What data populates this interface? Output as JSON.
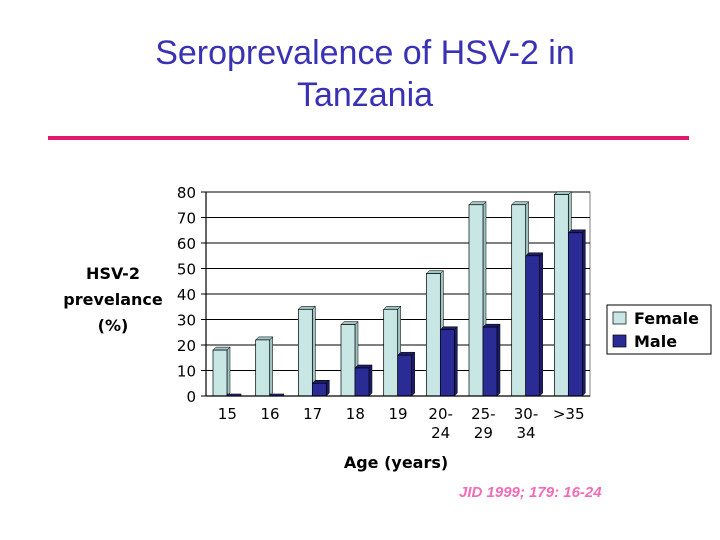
{
  "slide": {
    "title_line1": "Seroprevalence of HSV-2 in",
    "title_line2": "Tanzania",
    "citation": "JID 1999; 179: 16-24"
  },
  "colors": {
    "title": "#3a32b4",
    "rule": "#e0196e",
    "female": "#c8e6e4",
    "male": "#2b2b96",
    "citation": "#f06cb6"
  },
  "chart_data": {
    "type": "bar",
    "categories": [
      "15",
      "16",
      "17",
      "18",
      "19",
      "20-24",
      "25-29",
      "30-34",
      ">35"
    ],
    "category_labels": [
      [
        "15"
      ],
      [
        "16"
      ],
      [
        "17"
      ],
      [
        "18"
      ],
      [
        "19"
      ],
      [
        "20-",
        "24"
      ],
      [
        "25-",
        "29"
      ],
      [
        "30-",
        "34"
      ],
      [
        ">35"
      ]
    ],
    "series": [
      {
        "name": "Female",
        "values": [
          18,
          22,
          34,
          28,
          34,
          48,
          75,
          75,
          79
        ]
      },
      {
        "name": "Male",
        "values": [
          0,
          0,
          5,
          11,
          16,
          26,
          27,
          55,
          64
        ]
      }
    ],
    "title": "",
    "xlabel": "Age (years)",
    "ylabel_lines": [
      "HSV-2",
      "prevelance",
      "(%)"
    ],
    "ylim": [
      0,
      80
    ],
    "yticks": [
      0,
      10,
      20,
      30,
      40,
      50,
      60,
      70,
      80
    ],
    "grid": true,
    "legend_position": "right"
  }
}
